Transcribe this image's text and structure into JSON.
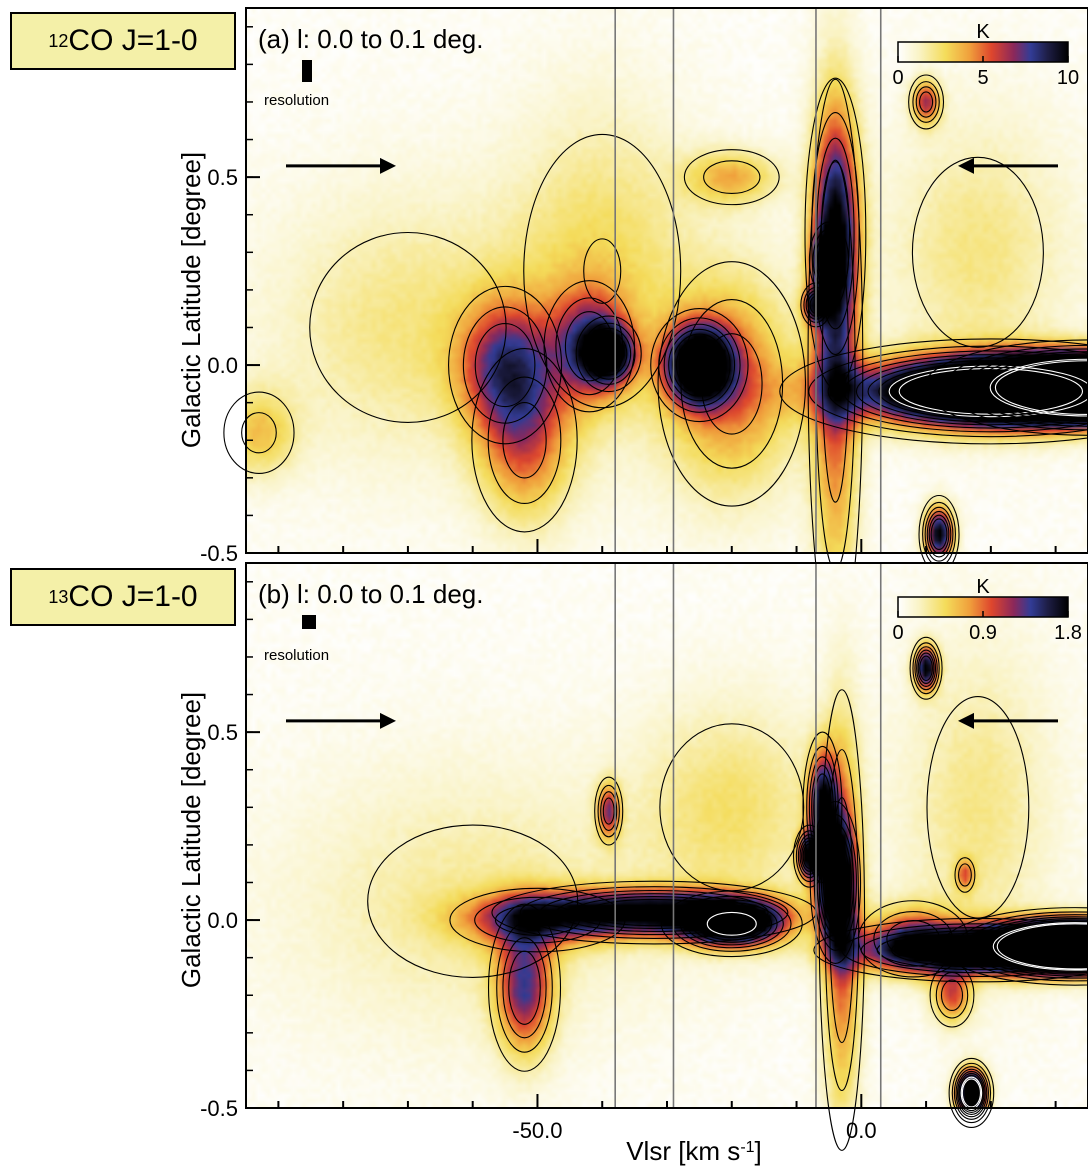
{
  "chart_data": [
    {
      "type": "heatmap",
      "panel_label": "(a) l: 0.0 to 0.1 deg.",
      "molecule_tag": {
        "sup": "12",
        "text": "CO J=1-0"
      },
      "resolution_label": "resolution",
      "colorbar": {
        "unit": "K",
        "min": 0,
        "max": 10,
        "ticks": [
          "0",
          "5",
          "10"
        ]
      },
      "ylabel": "Galactic Latitude [degree]",
      "ylim": [
        -0.5,
        0.95
      ],
      "xlim": [
        -95,
        35
      ],
      "y_ticks": [
        "0.5",
        "0.0",
        "-0.5"
      ],
      "vertical_lines_kms": [
        -38,
        -29,
        -7,
        3
      ],
      "arrows": [
        "right",
        "left"
      ],
      "features": [
        {
          "v": -93,
          "b": -0.18,
          "amp": 3.0,
          "sv": 4,
          "sb": 0.08
        },
        {
          "v": -55,
          "b": 0.0,
          "amp": 5.5,
          "sv": 5,
          "sb": 0.12
        },
        {
          "v": -52,
          "b": -0.2,
          "amp": 4.5,
          "sv": 5,
          "sb": 0.15
        },
        {
          "v": -39,
          "b": 0.03,
          "amp": 9.0,
          "sv": 2.5,
          "sb": 0.05
        },
        {
          "v": -42,
          "b": 0.05,
          "amp": 5.5,
          "sv": 4,
          "sb": 0.1
        },
        {
          "v": -25,
          "b": 0.0,
          "amp": 12,
          "sv": 3.5,
          "sb": 0.07
        },
        {
          "v": -20,
          "b": -0.05,
          "amp": 4.5,
          "sv": 7,
          "sb": 0.2
        },
        {
          "v": -4,
          "b": 0.35,
          "amp": 7.0,
          "sv": 2.5,
          "sb": 0.22
        },
        {
          "v": -4,
          "b": 0.0,
          "amp": 5.0,
          "sv": 2.5,
          "sb": 0.45
        },
        {
          "v": -5,
          "b": 0.28,
          "amp": 9.0,
          "sv": 1.5,
          "sb": 0.05
        },
        {
          "v": -7,
          "b": 0.16,
          "amp": 8.0,
          "sv": 1.2,
          "sb": 0.03
        },
        {
          "v": 10,
          "b": 0.7,
          "amp": 6.0,
          "sv": 1.5,
          "sb": 0.04
        },
        {
          "v": 20,
          "b": -0.07,
          "amp": 18,
          "sv": 14,
          "sb": 0.06
        },
        {
          "v": 35,
          "b": -0.06,
          "amp": 30,
          "sv": 10,
          "sb": 0.05
        },
        {
          "v": 12,
          "b": -0.45,
          "amp": 10,
          "sv": 1.5,
          "sb": 0.05
        },
        {
          "v": -20,
          "b": 0.5,
          "amp": 3.5,
          "sv": 5,
          "sb": 0.05
        },
        {
          "v": -40,
          "b": 0.25,
          "amp": 2.5,
          "sv": 10,
          "sb": 0.3
        },
        {
          "v": -70,
          "b": 0.1,
          "amp": 2.0,
          "sv": 15,
          "sb": 0.25
        },
        {
          "v": 18,
          "b": 0.3,
          "amp": 2.0,
          "sv": 10,
          "sb": 0.25
        }
      ]
    },
    {
      "type": "heatmap",
      "panel_label": "(b) l: 0.0 to 0.1 deg.",
      "molecule_tag": {
        "sup": "13",
        "text": "CO J=1-0"
      },
      "resolution_label": "resolution",
      "colorbar": {
        "unit": "K",
        "min": 0,
        "max": 1.8,
        "ticks": [
          "0",
          "0.9",
          "1.8"
        ]
      },
      "xlabel": "Vlsr [km s-1]",
      "ylabel": "Galactic Latitude [degree]",
      "ylim": [
        -0.5,
        0.95
      ],
      "xlim": [
        -95,
        35
      ],
      "x_ticks": [
        "-50.0",
        "0.0"
      ],
      "y_ticks": [
        "0.5",
        "0.0",
        "-0.5"
      ],
      "vertical_lines_kms": [
        -38,
        -29,
        -7,
        3
      ],
      "arrows": [
        "right",
        "left"
      ],
      "features": [
        {
          "v": -32,
          "b": 0.02,
          "amp": 1.9,
          "sv": 12,
          "sb": 0.04
        },
        {
          "v": -20,
          "b": -0.01,
          "amp": 2.3,
          "sv": 5,
          "sb": 0.04
        },
        {
          "v": -52,
          "b": -0.18,
          "amp": 1.2,
          "sv": 3,
          "sb": 0.12
        },
        {
          "v": -50,
          "b": 0.0,
          "amp": 0.9,
          "sv": 8,
          "sb": 0.05
        },
        {
          "v": -39,
          "b": 0.29,
          "amp": 1.1,
          "sv": 1.2,
          "sb": 0.05
        },
        {
          "v": -4,
          "b": 0.1,
          "amp": 2.2,
          "sv": 1.8,
          "sb": 0.1
        },
        {
          "v": -6,
          "b": 0.3,
          "amp": 1.6,
          "sv": 1.5,
          "sb": 0.1
        },
        {
          "v": -8,
          "b": 0.17,
          "amp": 1.8,
          "sv": 1.2,
          "sb": 0.04
        },
        {
          "v": -3,
          "b": 0.0,
          "amp": 1.0,
          "sv": 2,
          "sb": 0.35
        },
        {
          "v": 10,
          "b": 0.67,
          "amp": 1.8,
          "sv": 1.2,
          "sb": 0.04
        },
        {
          "v": 18,
          "b": -0.08,
          "amp": 2.0,
          "sv": 12,
          "sb": 0.04
        },
        {
          "v": 33,
          "b": -0.07,
          "amp": 6.0,
          "sv": 8,
          "sb": 0.04
        },
        {
          "v": 14,
          "b": -0.2,
          "amp": 0.9,
          "sv": 2,
          "sb": 0.05
        },
        {
          "v": 17,
          "b": -0.46,
          "amp": 3.0,
          "sv": 1.5,
          "sb": 0.04
        },
        {
          "v": 8,
          "b": -0.05,
          "amp": 0.9,
          "sv": 5,
          "sb": 0.06
        },
        {
          "v": -20,
          "b": 0.3,
          "amp": 0.4,
          "sv": 10,
          "sb": 0.2
        },
        {
          "v": -60,
          "b": 0.05,
          "amp": 0.3,
          "sv": 20,
          "sb": 0.25
        },
        {
          "v": 18,
          "b": 0.3,
          "amp": 0.35,
          "sv": 8,
          "sb": 0.3
        },
        {
          "v": 16,
          "b": 0.12,
          "amp": 0.7,
          "sv": 1,
          "sb": 0.03
        }
      ]
    }
  ]
}
